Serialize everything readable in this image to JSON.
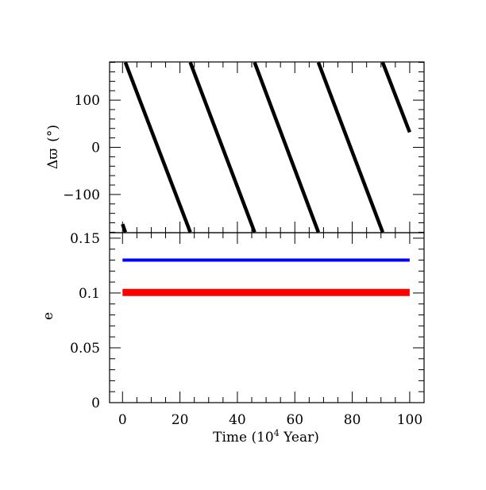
{
  "chart_data": [
    {
      "type": "scatter",
      "panel": "top",
      "ylabel_symbol": "Δϖ",
      "ylabel_unit": "(°)",
      "xlim": [
        -4.5,
        105
      ],
      "ylim": [
        -181,
        181
      ],
      "xticks": [
        0,
        20,
        40,
        60,
        80,
        100
      ],
      "yticks": [
        -100,
        0,
        100
      ],
      "ytick_labels": [
        "−100",
        "0",
        "100"
      ],
      "series": [
        {
          "color": "#000000",
          "points": [
            [
              0.0,
              -163
            ],
            [
              1.0,
              -180
            ]
          ]
        },
        {
          "color": "#000000",
          "points": [
            [
              1.0,
              180
            ],
            [
              23.6,
              -180
            ]
          ]
        },
        {
          "color": "#000000",
          "points": [
            [
              23.6,
              180
            ],
            [
              46.0,
              -180
            ]
          ]
        },
        {
          "color": "#000000",
          "points": [
            [
              46.0,
              180
            ],
            [
              68.2,
              -180
            ]
          ]
        },
        {
          "color": "#000000",
          "points": [
            [
              68.2,
              180
            ],
            [
              90.6,
              -180
            ]
          ]
        },
        {
          "color": "#000000",
          "points": [
            [
              90.6,
              180
            ],
            [
              100.0,
              32
            ]
          ]
        }
      ]
    },
    {
      "type": "line",
      "panel": "bottom",
      "xlabel": "Time (10",
      "xlabel_sup": "4",
      "xlabel_tail": " Year)",
      "ylabel": "e",
      "xlim": [
        -4.5,
        105
      ],
      "ylim": [
        0,
        0.155
      ],
      "xticks": [
        0,
        20,
        40,
        60,
        80,
        100
      ],
      "xtick_labels": [
        "0",
        "20",
        "40",
        "60",
        "80",
        "100"
      ],
      "yticks": [
        0,
        0.05,
        0.1,
        0.15
      ],
      "ytick_labels": [
        "0",
        "0.05",
        "0.1",
        "0.15"
      ],
      "series": [
        {
          "color": "#0000ff",
          "x": [
            0,
            100
          ],
          "y": [
            0.13,
            0.13
          ],
          "width": 4
        },
        {
          "color": "#ff0000",
          "x": [
            0,
            100
          ],
          "y": [
            0.1005,
            0.1005
          ],
          "width": 9
        }
      ]
    }
  ]
}
